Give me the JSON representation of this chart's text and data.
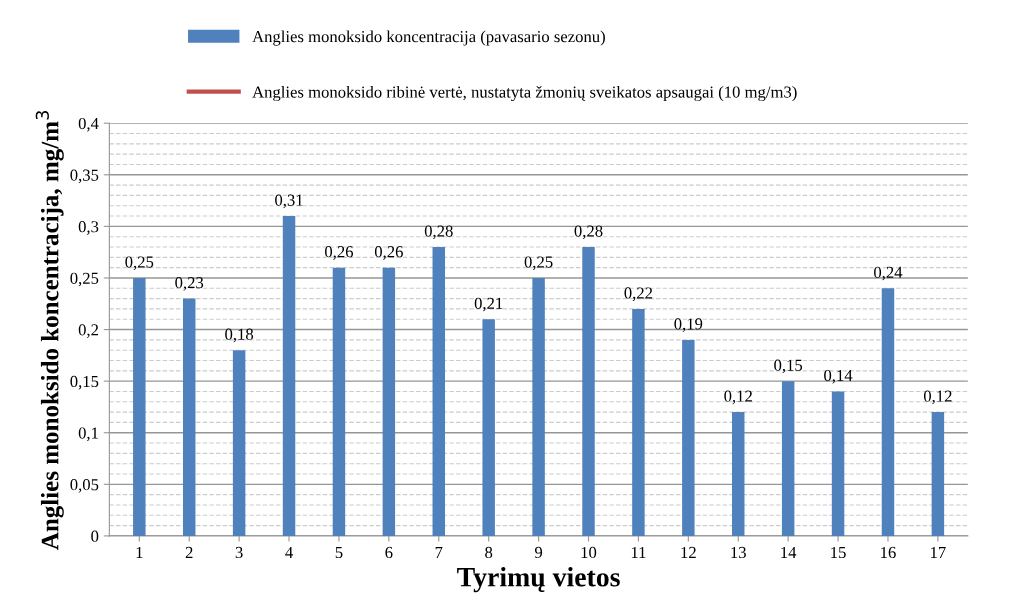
{
  "chart_data": {
    "type": "bar",
    "xlabel": "Tyrimų vietos",
    "ylabel": "Anglies monoksido koncentracija, mg/m$^{3}$",
    "categories": [
      "1",
      "2",
      "3",
      "4",
      "5",
      "6",
      "7",
      "8",
      "9",
      "10",
      "11",
      "12",
      "13",
      "14",
      "15",
      "16",
      "17"
    ],
    "series": [
      {
        "name": "Anglies monoksido koncentracija (pavasario sezonu)",
        "color": "#4f81bd",
        "values": [
          0.25,
          0.23,
          0.18,
          0.31,
          0.26,
          0.26,
          0.28,
          0.21,
          0.25,
          0.28,
          0.22,
          0.19,
          0.12,
          0.15,
          0.14,
          0.24,
          0.12
        ],
        "value_labels": [
          "0,25",
          "0,23",
          "0,18",
          "0,31",
          "0,26",
          "0,26",
          "0,28",
          "0,21",
          "0,25",
          "0,28",
          "0,22",
          "0,19",
          "0,12",
          "0,15",
          "0,14",
          "0,24",
          "0,12"
        ]
      },
      {
        "name": "Anglies monoksido ribinė vertė, nustatyta žmonių sveikatos apsaugai (10 mg/m3)",
        "color": "#c0504d",
        "type": "line",
        "values": [
          null,
          null,
          null,
          null,
          null,
          null,
          null,
          null,
          null,
          null,
          null,
          null,
          null,
          null,
          null,
          null,
          null
        ]
      }
    ],
    "ylim": [
      0,
      0.4
    ],
    "yticks": [
      {
        "value": 0,
        "label": "0"
      },
      {
        "value": 0.05,
        "label": "0,05"
      },
      {
        "value": 0.1,
        "label": "0,1"
      },
      {
        "value": 0.15,
        "label": "0,15"
      },
      {
        "value": 0.2,
        "label": "0,2"
      },
      {
        "value": 0.25,
        "label": "0,25"
      },
      {
        "value": 0.3,
        "label": "0,3"
      },
      {
        "value": 0.35,
        "label": "0,35"
      },
      {
        "value": 0.4,
        "label": "0,4"
      }
    ],
    "grid": "y",
    "legend": "top"
  }
}
